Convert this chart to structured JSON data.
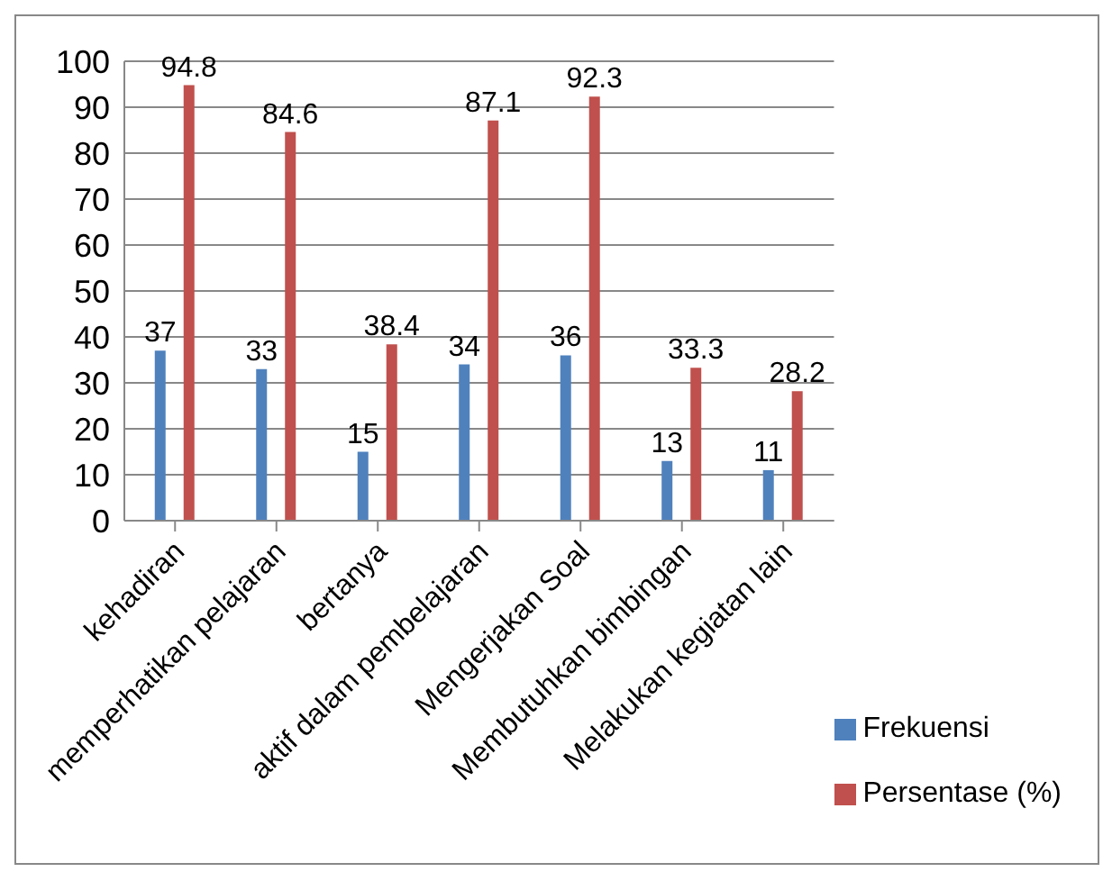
{
  "chart_data": {
    "type": "bar",
    "categories": [
      "kehadiran",
      "memperhatikan pelajaran",
      "bertanya",
      "aktif dalam pembelajaran",
      "Mengerjakan Soal",
      "Membutuhkan bimbingan",
      "Melakukan kegiatan lain"
    ],
    "series": [
      {
        "name": "Frekuensi",
        "color": "#4f81bd",
        "values": [
          37,
          33,
          15,
          34,
          36,
          13,
          11
        ]
      },
      {
        "name": "Persentase (%)",
        "color": "#c0504d",
        "values": [
          94.8,
          84.6,
          38.4,
          87.1,
          92.3,
          33.3,
          28.2
        ]
      }
    ],
    "ylim": [
      0,
      100
    ],
    "yticks": [
      0,
      10,
      20,
      30,
      40,
      50,
      60,
      70,
      80,
      90,
      100
    ],
    "grid": "y",
    "legend": "bottom right",
    "data_labels": true
  }
}
